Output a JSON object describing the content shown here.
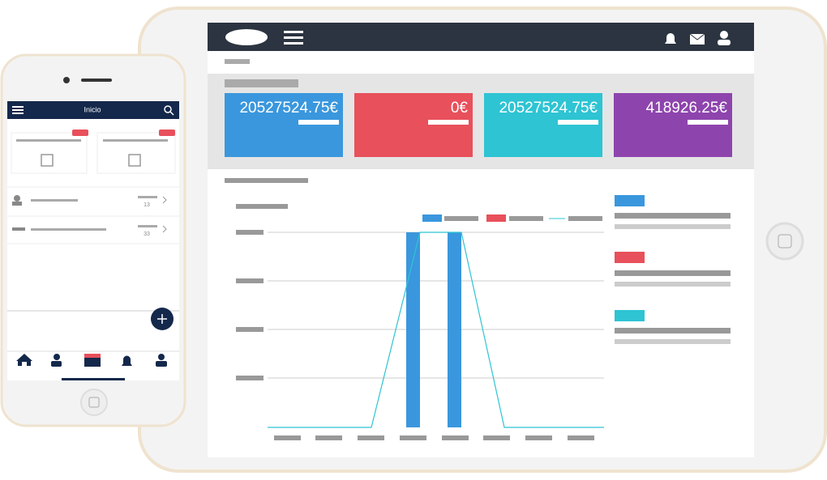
{
  "tablet": {
    "cards": [
      {
        "value": "20527524.75€",
        "color": "#3a97dd"
      },
      {
        "value": "0€",
        "color": "#e8505b"
      },
      {
        "value": "20527524.75€",
        "color": "#2ec4d3"
      },
      {
        "value": "418926.25€",
        "color": "#8e44ad"
      }
    ]
  },
  "phone": {
    "title": "Inicio",
    "rows": [
      {
        "count": "13"
      },
      {
        "count": "33"
      }
    ]
  }
}
